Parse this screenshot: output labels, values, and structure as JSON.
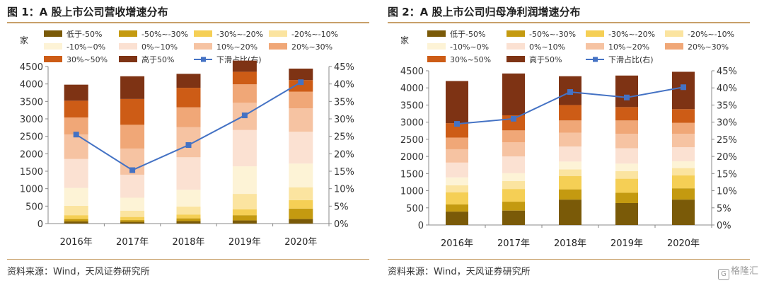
{
  "legend_labels": [
    "低于-50%",
    "-50%~-30%",
    "-30%~-20%",
    "-20%~-10%",
    "-10%~0%",
    "0%~10%",
    "10%~20%",
    "20%~30%",
    "30%~50%",
    "高于50%",
    "下滑占比(右)"
  ],
  "colors": {
    "segments": [
      "#7a5a08",
      "#c49a10",
      "#f5cf55",
      "#fbe4a0",
      "#fdf3d6",
      "#fbe1d2",
      "#f6c3a2",
      "#f0a777",
      "#cd5c16",
      "#7e3314"
    ],
    "line": "#4472c4",
    "rule": "#c8a06a"
  },
  "footer": {
    "watermark": "格隆汇"
  },
  "chart_data": [
    {
      "type": "bar",
      "stacked": true,
      "title": "图 1：A 股上市公司营收增速分布",
      "source": "资料来源：Wind，天风证券研究所",
      "ylabel": "家",
      "categories": [
        "2016年",
        "2017年",
        "2018年",
        "2019年",
        "2020年"
      ],
      "ylim": [
        0,
        4500
      ],
      "y_ticks": [
        "0",
        "500",
        "1000",
        "1500",
        "2000",
        "2500",
        "3000",
        "3500",
        "4000",
        "4500"
      ],
      "y2lim": [
        0,
        45
      ],
      "y2_ticks": [
        "0%",
        "5%",
        "10%",
        "15%",
        "20%",
        "25%",
        "30%",
        "35%",
        "40%",
        "45%"
      ],
      "series": [
        {
          "name": "低于-50%",
          "values": [
            60,
            50,
            70,
            90,
            130
          ]
        },
        {
          "name": "-50%~-30%",
          "values": [
            70,
            50,
            80,
            150,
            300
          ]
        },
        {
          "name": "-30%~-20%",
          "values": [
            110,
            90,
            110,
            170,
            240
          ]
        },
        {
          "name": "-20%~-10%",
          "values": [
            270,
            180,
            230,
            440,
            370
          ]
        },
        {
          "name": "-10%~0%",
          "values": [
            510,
            370,
            480,
            790,
            680
          ]
        },
        {
          "name": "0%~10%",
          "values": [
            830,
            660,
            930,
            1040,
            910
          ]
        },
        {
          "name": "10%~20%",
          "values": [
            700,
            750,
            860,
            780,
            670
          ]
        },
        {
          "name": "20%~30%",
          "values": [
            490,
            680,
            570,
            530,
            480
          ]
        },
        {
          "name": "30%~50%",
          "values": [
            480,
            740,
            560,
            360,
            330
          ]
        },
        {
          "name": "高于50%",
          "values": [
            460,
            650,
            400,
            320,
            330
          ]
        }
      ],
      "line_series": {
        "name": "下滑占比(右)",
        "axis": "right",
        "values": [
          25.5,
          15.3,
          22.5,
          31.0,
          40.5
        ]
      }
    },
    {
      "type": "bar",
      "stacked": true,
      "title": "图 2：A 股上市公司归母净利润增速分布",
      "source": "资料来源：Wind，天风证券研究所",
      "ylabel": "家",
      "categories": [
        "2016年",
        "2017年",
        "2018年",
        "2019年",
        "2020年"
      ],
      "ylim": [
        0,
        4500
      ],
      "y_ticks": [
        "0",
        "500",
        "1000",
        "1500",
        "2000",
        "2500",
        "3000",
        "3500",
        "4000",
        "4500"
      ],
      "y2lim": [
        0,
        45
      ],
      "y2_ticks": [
        "0%",
        "5%",
        "10%",
        "15%",
        "20%",
        "25%",
        "30%",
        "35%",
        "40%",
        "45%"
      ],
      "series": [
        {
          "name": "低于-50%",
          "values": [
            390,
            420,
            740,
            640,
            740
          ]
        },
        {
          "name": "-50%~-30%",
          "values": [
            210,
            260,
            300,
            300,
            330
          ]
        },
        {
          "name": "-30%~-20%",
          "values": [
            350,
            370,
            390,
            410,
            380
          ]
        },
        {
          "name": "-20%~-10%",
          "values": [
            210,
            230,
            190,
            220,
            210
          ]
        },
        {
          "name": "-10%~0%",
          "values": [
            230,
            230,
            230,
            220,
            200
          ]
        },
        {
          "name": "0%~10%",
          "values": [
            430,
            490,
            440,
            450,
            410
          ]
        },
        {
          "name": "10%~20%",
          "values": [
            390,
            410,
            400,
            420,
            390
          ]
        },
        {
          "name": "20%~30%",
          "values": [
            340,
            350,
            360,
            390,
            320
          ]
        },
        {
          "name": "30%~50%",
          "values": [
            420,
            440,
            450,
            390,
            400
          ]
        },
        {
          "name": "高于50%",
          "values": [
            1230,
            1220,
            840,
            920,
            1090
          ]
        }
      ],
      "line_series": {
        "name": "下滑占比(右)",
        "axis": "right",
        "values": [
          29.5,
          31.0,
          38.8,
          37.2,
          40.2
        ]
      }
    }
  ]
}
